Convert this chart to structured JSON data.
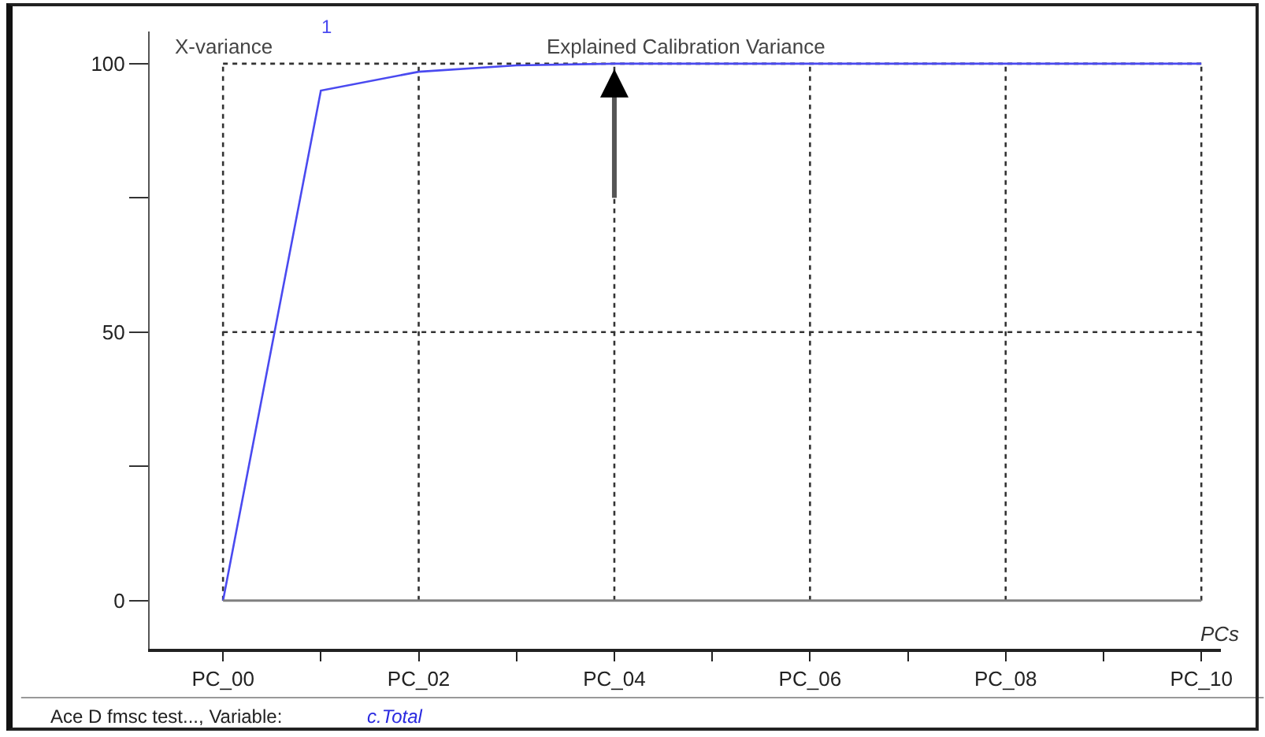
{
  "chart_data": {
    "type": "line",
    "title": "Explained Calibration Variance",
    "ylabel": "X-variance",
    "xlabel": "PCs",
    "x": [
      0,
      1,
      2,
      3,
      4,
      5,
      6,
      7,
      8,
      9,
      10
    ],
    "series": [
      {
        "color": "#4a4af0",
        "values": [
          0,
          95,
          98.5,
          99.7,
          100,
          100,
          100,
          100,
          100,
          100,
          100
        ]
      }
    ],
    "xlim": [
      -0.75,
      10.2
    ],
    "ylim": [
      -9,
      106
    ],
    "xticks": [
      {
        "value": 0,
        "label": "PC_00"
      },
      {
        "value": 1,
        "label": null
      },
      {
        "value": 2,
        "label": "PC_02"
      },
      {
        "value": 3,
        "label": null
      },
      {
        "value": 4,
        "label": "PC_04"
      },
      {
        "value": 5,
        "label": null
      },
      {
        "value": 6,
        "label": "PC_06"
      },
      {
        "value": 7,
        "label": null
      },
      {
        "value": 8,
        "label": "PC_08"
      },
      {
        "value": 9,
        "label": null
      },
      {
        "value": 10,
        "label": "PC_10"
      }
    ],
    "yticks": [
      0,
      {
        "value": 25,
        "label": null
      },
      50,
      {
        "value": 75,
        "label": null
      },
      100
    ],
    "grid": true,
    "marker": "none",
    "line_style": "solid",
    "ref_lines": [
      {
        "axis": "y",
        "value": 0,
        "color": "#808080"
      }
    ],
    "annotations": [
      "1",
      "Ace D fmsc test..., Variable:",
      "c.Total"
    ]
  }
}
